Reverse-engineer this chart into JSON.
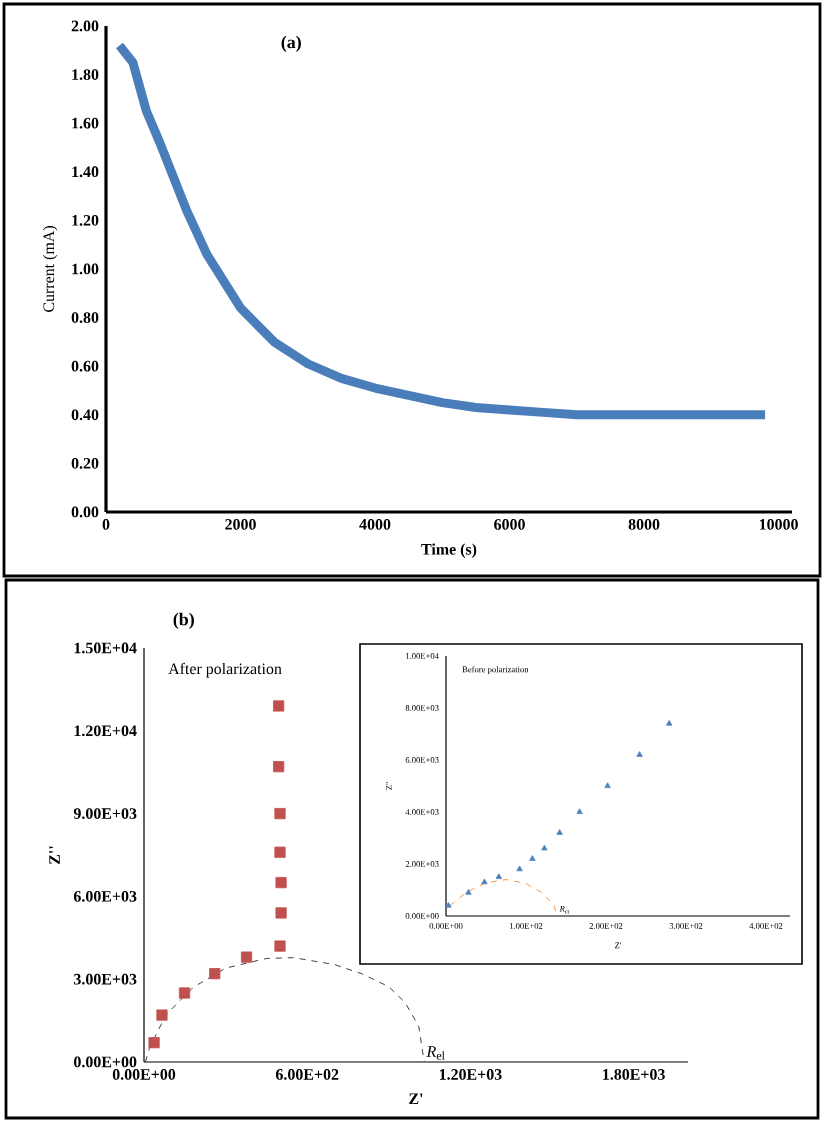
{
  "chart_data": [
    {
      "type": "line",
      "title": "(a)",
      "xlabel": "Time (s)",
      "ylabel": "Current (mA)",
      "xlim": [
        0,
        10200
      ],
      "ylim": [
        0,
        2
      ],
      "xticks": [
        0,
        2000,
        4000,
        6000,
        8000,
        10000
      ],
      "yticks": [
        {
          "value": 0,
          "label": "0.00"
        },
        {
          "value": 0.2,
          "label": "0.20"
        },
        {
          "value": 0.4,
          "label": "0.40"
        },
        {
          "value": 0.6,
          "label": "0.60"
        },
        {
          "value": 0.8,
          "label": "0.80"
        },
        {
          "value": 1,
          "label": "1.00"
        },
        {
          "value": 1.2,
          "label": "1.20"
        },
        {
          "value": 1.4,
          "label": "1.40"
        },
        {
          "value": 1.6,
          "label": "1.60"
        },
        {
          "value": 1.8,
          "label": "1.80"
        },
        {
          "value": 2,
          "label": "2.00"
        }
      ],
      "series": [
        {
          "color": "#4a7ebb",
          "line_style": "solid",
          "x": [
            200,
            400,
            600,
            800,
            1000,
            1200,
            1500,
            2000,
            2500,
            3000,
            3500,
            4000,
            4500,
            5000,
            5500,
            6000,
            6500,
            7000,
            8000,
            9000,
            9800
          ],
          "values": [
            1.92,
            1.85,
            1.65,
            1.52,
            1.38,
            1.24,
            1.06,
            0.84,
            0.7,
            0.61,
            0.55,
            0.51,
            0.48,
            0.45,
            0.43,
            0.42,
            0.41,
            0.4,
            0.4,
            0.4,
            0.4
          ]
        }
      ]
    },
    {
      "type": "scatter",
      "title": "(b)",
      "xlabel": "Z'",
      "ylabel": "Z''",
      "xlim": [
        0,
        2000
      ],
      "ylim": [
        0,
        15000
      ],
      "xticks": [
        {
          "value": 0,
          "label": "0.00E+00"
        },
        {
          "value": 600,
          "label": "6.00E+02"
        },
        {
          "value": 1200,
          "label": "1.20E+03"
        },
        {
          "value": 1800,
          "label": "1.80E+03"
        }
      ],
      "yticks": [
        {
          "value": 0,
          "label": "0.00E+00"
        },
        {
          "value": 3000,
          "label": "3.00E+03"
        },
        {
          "value": 6000,
          "label": "6.00E+03"
        },
        {
          "value": 9000,
          "label": "9.00E+03"
        },
        {
          "value": 12000,
          "label": "1.20E+04"
        },
        {
          "value": 15000,
          "label": "1.50E+04"
        }
      ],
      "annotations": [
        "After polarization",
        {
          "text": "*R*$_{el}$",
          "x": 1030,
          "y": 0
        }
      ],
      "series": [
        {
          "color": "#c0504d",
          "marker": "square",
          "x": [
            37,
            66,
            149,
            260,
            377,
            500,
            504,
            504,
            500,
            500,
            495,
            495
          ],
          "values": [
            700,
            1700,
            2500,
            3200,
            3800,
            4200,
            5400,
            6500,
            7600,
            9000,
            10700,
            12900
          ]
        },
        {
          "type": "line",
          "color": "#404040",
          "line_style": "dashed",
          "x": [
            5,
            20,
            80,
            180,
            300,
            450,
            550,
            700,
            800,
            900,
            960,
            1010,
            1030
          ],
          "values": [
            0,
            500,
            1700,
            2700,
            3400,
            3750,
            3780,
            3530,
            3200,
            2730,
            2150,
            1300,
            0
          ]
        }
      ]
    },
    {
      "type": "scatter",
      "xlabel": "Z'",
      "ylabel": "Z''",
      "xlim": [
        0,
        430
      ],
      "ylim": [
        0,
        10000
      ],
      "xticks": [
        {
          "value": 0,
          "label": "0.00E+00"
        },
        {
          "value": 100,
          "label": "1.00E+02"
        },
        {
          "value": 200,
          "label": "2.00E+02"
        },
        {
          "value": 300,
          "label": "3.00E+02"
        },
        {
          "value": 400,
          "label": "4.00E+02"
        }
      ],
      "yticks": [
        {
          "value": 0,
          "label": "0.00E+00"
        },
        {
          "value": 2000,
          "label": "2.00E+03"
        },
        {
          "value": 4000,
          "label": "4.00E+03"
        },
        {
          "value": 6000,
          "label": "6.00E+03"
        },
        {
          "value": 8000,
          "label": "8.00E+03"
        },
        {
          "value": 10000,
          "label": "1.00E+04"
        }
      ],
      "annotations": [
        "Before polarization",
        {
          "text": "*R*$_{ct}$",
          "x": 139,
          "y": 0
        }
      ],
      "series": [
        {
          "color": "#4f81bd",
          "marker": "triangle",
          "x": [
            3,
            28,
            48,
            66,
            92,
            108,
            123,
            142,
            167,
            202,
            242,
            279
          ],
          "values": [
            400,
            900,
            1300,
            1500,
            1800,
            2200,
            2600,
            3200,
            4000,
            5000,
            6200,
            7400
          ]
        },
        {
          "type": "line",
          "color": "#f79646",
          "line_style": "dashed",
          "x": [
            5,
            25,
            50,
            75,
            100,
            120,
            135,
            139
          ],
          "values": [
            400,
            900,
            1280,
            1400,
            1250,
            900,
            400,
            0
          ]
        }
      ]
    }
  ]
}
